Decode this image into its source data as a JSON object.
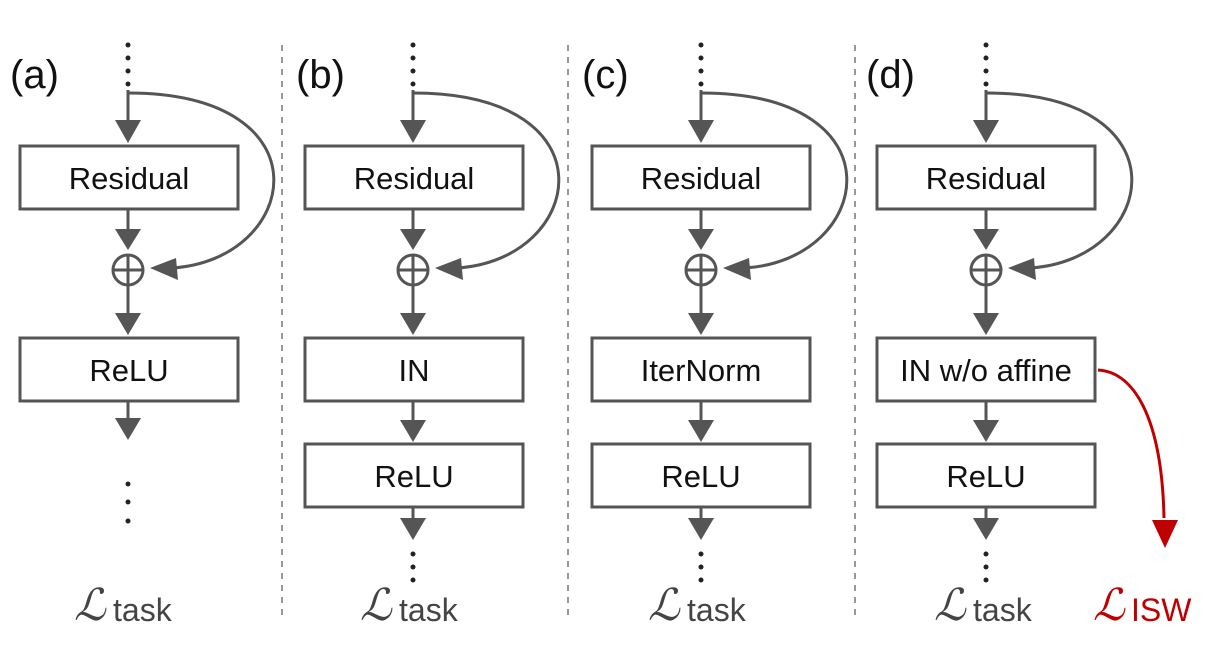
{
  "panels": [
    {
      "label": "(a)",
      "boxes": [
        "Residual",
        "ReLU"
      ],
      "loss_symbol": "ℒ",
      "loss_sub": "task"
    },
    {
      "label": "(b)",
      "boxes": [
        "Residual",
        "IN",
        "ReLU"
      ],
      "loss_symbol": "ℒ",
      "loss_sub": "task"
    },
    {
      "label": "(c)",
      "boxes": [
        "Residual",
        "IterNorm",
        "ReLU"
      ],
      "loss_symbol": "ℒ",
      "loss_sub": "task"
    },
    {
      "label": "(d)",
      "boxes": [
        "Residual",
        "IN w/o affine",
        "ReLU"
      ],
      "loss_symbol": "ℒ",
      "loss_sub": "task"
    }
  ],
  "extra_loss": {
    "symbol": "ℒ",
    "sub": "ISW"
  },
  "colors": {
    "stroke": "#555555",
    "accent": "#c00000"
  }
}
